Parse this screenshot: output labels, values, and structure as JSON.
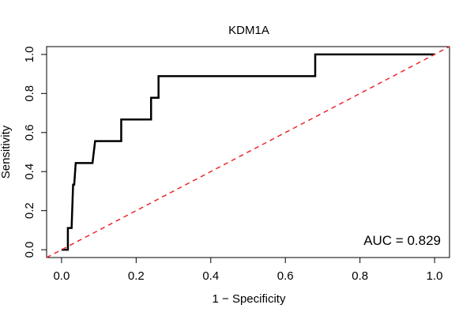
{
  "chart_data": {
    "type": "line",
    "title": "KDM1A",
    "xlabel": "1 − Specificity",
    "ylabel": "Sensitivity",
    "xlim": [
      -0.04,
      1.04
    ],
    "ylim": [
      -0.04,
      1.04
    ],
    "xticks": [
      0.0,
      0.2,
      0.4,
      0.6,
      0.8,
      1.0
    ],
    "yticks": [
      0.0,
      0.2,
      0.4,
      0.6,
      0.8,
      1.0
    ],
    "xtick_labels": [
      "0.0",
      "0.2",
      "0.4",
      "0.6",
      "0.8",
      "1.0"
    ],
    "ytick_labels": [
      "0.0",
      "0.2",
      "0.4",
      "0.6",
      "0.8",
      "1.0"
    ],
    "grid": false,
    "series": [
      {
        "name": "ROC curve",
        "color": "#000000",
        "style": "solid",
        "x": [
          0.0,
          0.017,
          0.017,
          0.027,
          0.031,
          0.034,
          0.038,
          0.043,
          0.067,
          0.083,
          0.09,
          0.11,
          0.13,
          0.15,
          0.16,
          0.16,
          0.19,
          0.2,
          0.24,
          0.24,
          0.245,
          0.25,
          0.26,
          0.26,
          0.39,
          0.62,
          0.68,
          0.68,
          1.0
        ],
        "y": [
          0.0,
          0.0,
          0.111,
          0.111,
          0.333,
          0.333,
          0.444,
          0.444,
          0.444,
          0.444,
          0.556,
          0.556,
          0.556,
          0.556,
          0.556,
          0.667,
          0.667,
          0.667,
          0.667,
          0.778,
          0.778,
          0.778,
          0.778,
          0.889,
          0.889,
          0.889,
          0.889,
          1.0,
          1.0
        ]
      },
      {
        "name": "Reference diagonal",
        "color": "#e8292e",
        "style": "dashed",
        "x": [
          -0.04,
          1.04
        ],
        "y": [
          -0.04,
          1.04
        ]
      }
    ],
    "annotations": [
      {
        "text": "AUC = 0.829",
        "position": "bottom-right"
      }
    ]
  }
}
